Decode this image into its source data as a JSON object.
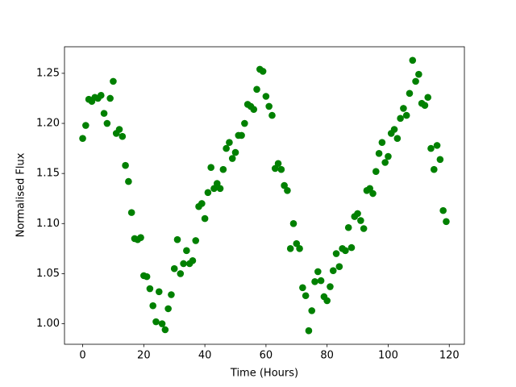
{
  "chart_data": {
    "type": "scatter",
    "xlabel": "Time (Hours)",
    "ylabel": "Normalised Flux",
    "color": "#008000",
    "x": [
      0,
      1,
      2,
      3,
      4,
      5,
      6,
      7,
      8,
      9,
      10,
      11,
      12,
      13,
      14,
      15,
      16,
      17,
      18,
      19,
      20,
      21,
      22,
      23,
      24,
      25,
      26,
      27,
      28,
      29,
      30,
      31,
      32,
      33,
      34,
      35,
      36,
      37,
      38,
      39,
      40,
      41,
      42,
      43,
      44,
      45,
      46,
      47,
      48,
      49,
      50,
      51,
      52,
      53,
      54,
      55,
      56,
      57,
      58,
      59,
      60,
      61,
      62,
      63,
      64,
      65,
      66,
      67,
      68,
      69,
      70,
      71,
      72,
      73,
      74,
      75,
      76,
      77,
      78,
      79,
      80,
      81,
      82,
      83,
      84,
      85,
      86,
      87,
      88,
      89,
      90,
      91,
      92,
      93,
      94,
      95,
      96,
      97,
      98,
      99,
      100,
      101,
      102,
      103,
      104,
      105,
      106,
      107,
      108,
      109,
      110,
      111,
      112,
      113,
      114,
      115,
      116,
      117,
      118,
      119
    ],
    "values": [
      1.185,
      1.198,
      1.224,
      1.222,
      1.226,
      1.225,
      1.228,
      1.21,
      1.2,
      1.225,
      1.242,
      1.19,
      1.194,
      1.187,
      1.158,
      1.142,
      1.111,
      1.085,
      1.084,
      1.086,
      1.048,
      1.047,
      1.035,
      1.018,
      1.002,
      1.032,
      1.0,
      0.994,
      1.015,
      1.029,
      1.055,
      1.084,
      1.05,
      1.06,
      1.073,
      1.06,
      1.063,
      1.083,
      1.117,
      1.12,
      1.105,
      1.131,
      1.156,
      1.135,
      1.14,
      1.135,
      1.154,
      1.175,
      1.181,
      1.165,
      1.171,
      1.188,
      1.188,
      1.2,
      1.219,
      1.217,
      1.214,
      1.234,
      1.254,
      1.252,
      1.227,
      1.217,
      1.208,
      1.155,
      1.16,
      1.154,
      1.138,
      1.133,
      1.075,
      1.1,
      1.08,
      1.075,
      1.036,
      1.028,
      0.993,
      1.013,
      1.042,
      1.052,
      1.043,
      1.027,
      1.023,
      1.037,
      1.053,
      1.07,
      1.057,
      1.075,
      1.073,
      1.096,
      1.076,
      1.107,
      1.11,
      1.103,
      1.095,
      1.133,
      1.135,
      1.13,
      1.152,
      1.17,
      1.181,
      1.161,
      1.167,
      1.19,
      1.194,
      1.185,
      1.205,
      1.215,
      1.208,
      1.23,
      1.263,
      1.242,
      1.249,
      1.22,
      1.218,
      1.226,
      1.175,
      1.154,
      1.178,
      1.164,
      1.113,
      1.102
    ],
    "xlim": [
      -5.95,
      124.95
    ],
    "xticks": [
      0,
      20,
      40,
      60,
      80,
      100,
      120
    ],
    "ylim": [
      0.9795,
      1.2765
    ],
    "yticks": [
      {
        "value": 1.0,
        "label": "1.00"
      },
      1.05,
      {
        "value": 1.1,
        "label": "1.10"
      },
      1.15,
      {
        "value": 1.2,
        "label": "1.20"
      },
      1.25
    ]
  }
}
